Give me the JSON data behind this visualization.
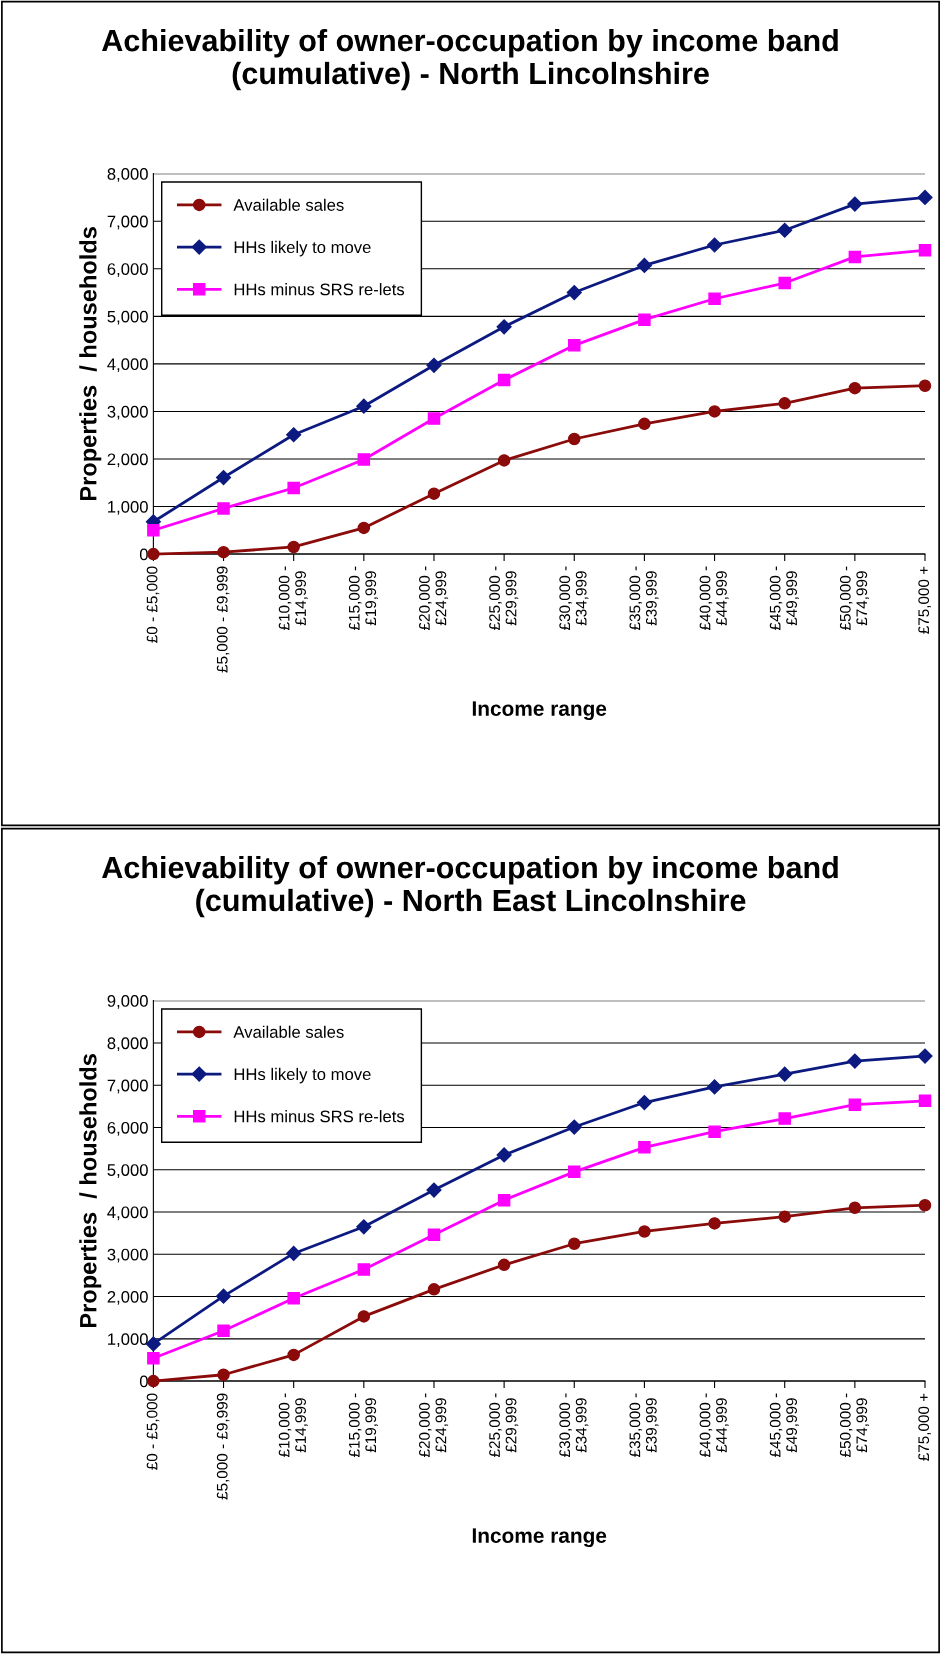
{
  "chart_data": [
    {
      "type": "line",
      "title": "Achievability of owner-occupation by income band\n(cumulative) - North Lincolnshire",
      "xlabel": "Income range",
      "ylabel": "Properties  / households",
      "categories": [
        "£0 - £5,000",
        "£5,000 - £9,999",
        "£10,000 -\n£14,999",
        "£15,000 -\n£19,999",
        "£20,000 -\n£24,999",
        "£25,000 -\n£29,999",
        "£30,000 -\n£34,999",
        "£35,000 -\n£39,999",
        "£40,000 -\n£44,999",
        "£45,000 -\n£49,999",
        "£50,000 -\n£74,999",
        "£75,000 +"
      ],
      "series": [
        {
          "name": "Available sales",
          "color": "#8b0a0a",
          "marker": "circle",
          "values": [
            0,
            40,
            150,
            550,
            1270,
            1970,
            2420,
            2740,
            3000,
            3170,
            3490,
            3540
          ]
        },
        {
          "name": "HHs likely to move",
          "color": "#0c1a80",
          "marker": "diamond",
          "values": [
            680,
            1610,
            2510,
            3110,
            3970,
            4780,
            5500,
            6070,
            6500,
            6810,
            7360,
            7500
          ]
        },
        {
          "name": "HHs minus SRS re-lets",
          "color": "#ff00ff",
          "marker": "square",
          "values": [
            500,
            960,
            1390,
            1990,
            2850,
            3660,
            4390,
            4930,
            5370,
            5700,
            6250,
            6390
          ]
        }
      ],
      "ylim": [
        0,
        8000
      ],
      "yticks": [
        0,
        {
          "value": 1000,
          "label": "1,000"
        },
        {
          "value": 2000,
          "label": "2,000"
        },
        {
          "value": 3000,
          "label": "3,000"
        },
        {
          "value": 4000,
          "label": "4,000"
        },
        {
          "value": 5000,
          "label": "5,000"
        },
        {
          "value": 6000,
          "label": "6,000"
        },
        {
          "value": 7000,
          "label": "7,000"
        },
        {
          "value": 8000,
          "label": "8,000"
        }
      ],
      "grid": "y",
      "legend": "top left"
    },
    {
      "type": "line",
      "title": "Achievability of owner-occupation by income band\n(cumulative) - North East Lincolnshire",
      "xlabel": "Income range",
      "ylabel": "Properties  / households",
      "categories": [
        "£0 - £5,000",
        "£5,000 - £9,999",
        "£10,000 -\n£14,999",
        "£15,000 -\n£19,999",
        "£20,000 -\n£24,999",
        "£25,000 -\n£29,999",
        "£30,000 -\n£34,999",
        "£35,000 -\n£39,999",
        "£40,000 -\n£44,999",
        "£45,000 -\n£49,999",
        "£50,000 -\n£74,999",
        "£75,000 +"
      ],
      "series": [
        {
          "name": "Available sales",
          "color": "#8b0a0a",
          "marker": "circle",
          "values": [
            0,
            150,
            620,
            1530,
            2170,
            2750,
            3250,
            3540,
            3730,
            3890,
            4100,
            4160
          ]
        },
        {
          "name": "HHs likely to move",
          "color": "#0c1a80",
          "marker": "diamond",
          "values": [
            880,
            2010,
            3020,
            3650,
            4520,
            5350,
            6010,
            6590,
            6960,
            7260,
            7570,
            7690
          ]
        },
        {
          "name": "HHs minus SRS re-lets",
          "color": "#ff00ff",
          "marker": "square",
          "values": [
            540,
            1190,
            1960,
            2640,
            3460,
            4280,
            4950,
            5530,
            5900,
            6210,
            6540,
            6630
          ]
        }
      ],
      "ylim": [
        0,
        9000
      ],
      "yticks": [
        0,
        {
          "value": 1000,
          "label": "1,000"
        },
        {
          "value": 2000,
          "label": "2,000"
        },
        {
          "value": 3000,
          "label": "3,000"
        },
        {
          "value": 4000,
          "label": "4,000"
        },
        {
          "value": 5000,
          "label": "5,000"
        },
        {
          "value": 6000,
          "label": "6,000"
        },
        {
          "value": 7000,
          "label": "7,000"
        },
        {
          "value": 8000,
          "label": "8,000"
        },
        {
          "value": 9000,
          "label": "9,000"
        }
      ],
      "grid": "y",
      "legend": "top left"
    }
  ]
}
